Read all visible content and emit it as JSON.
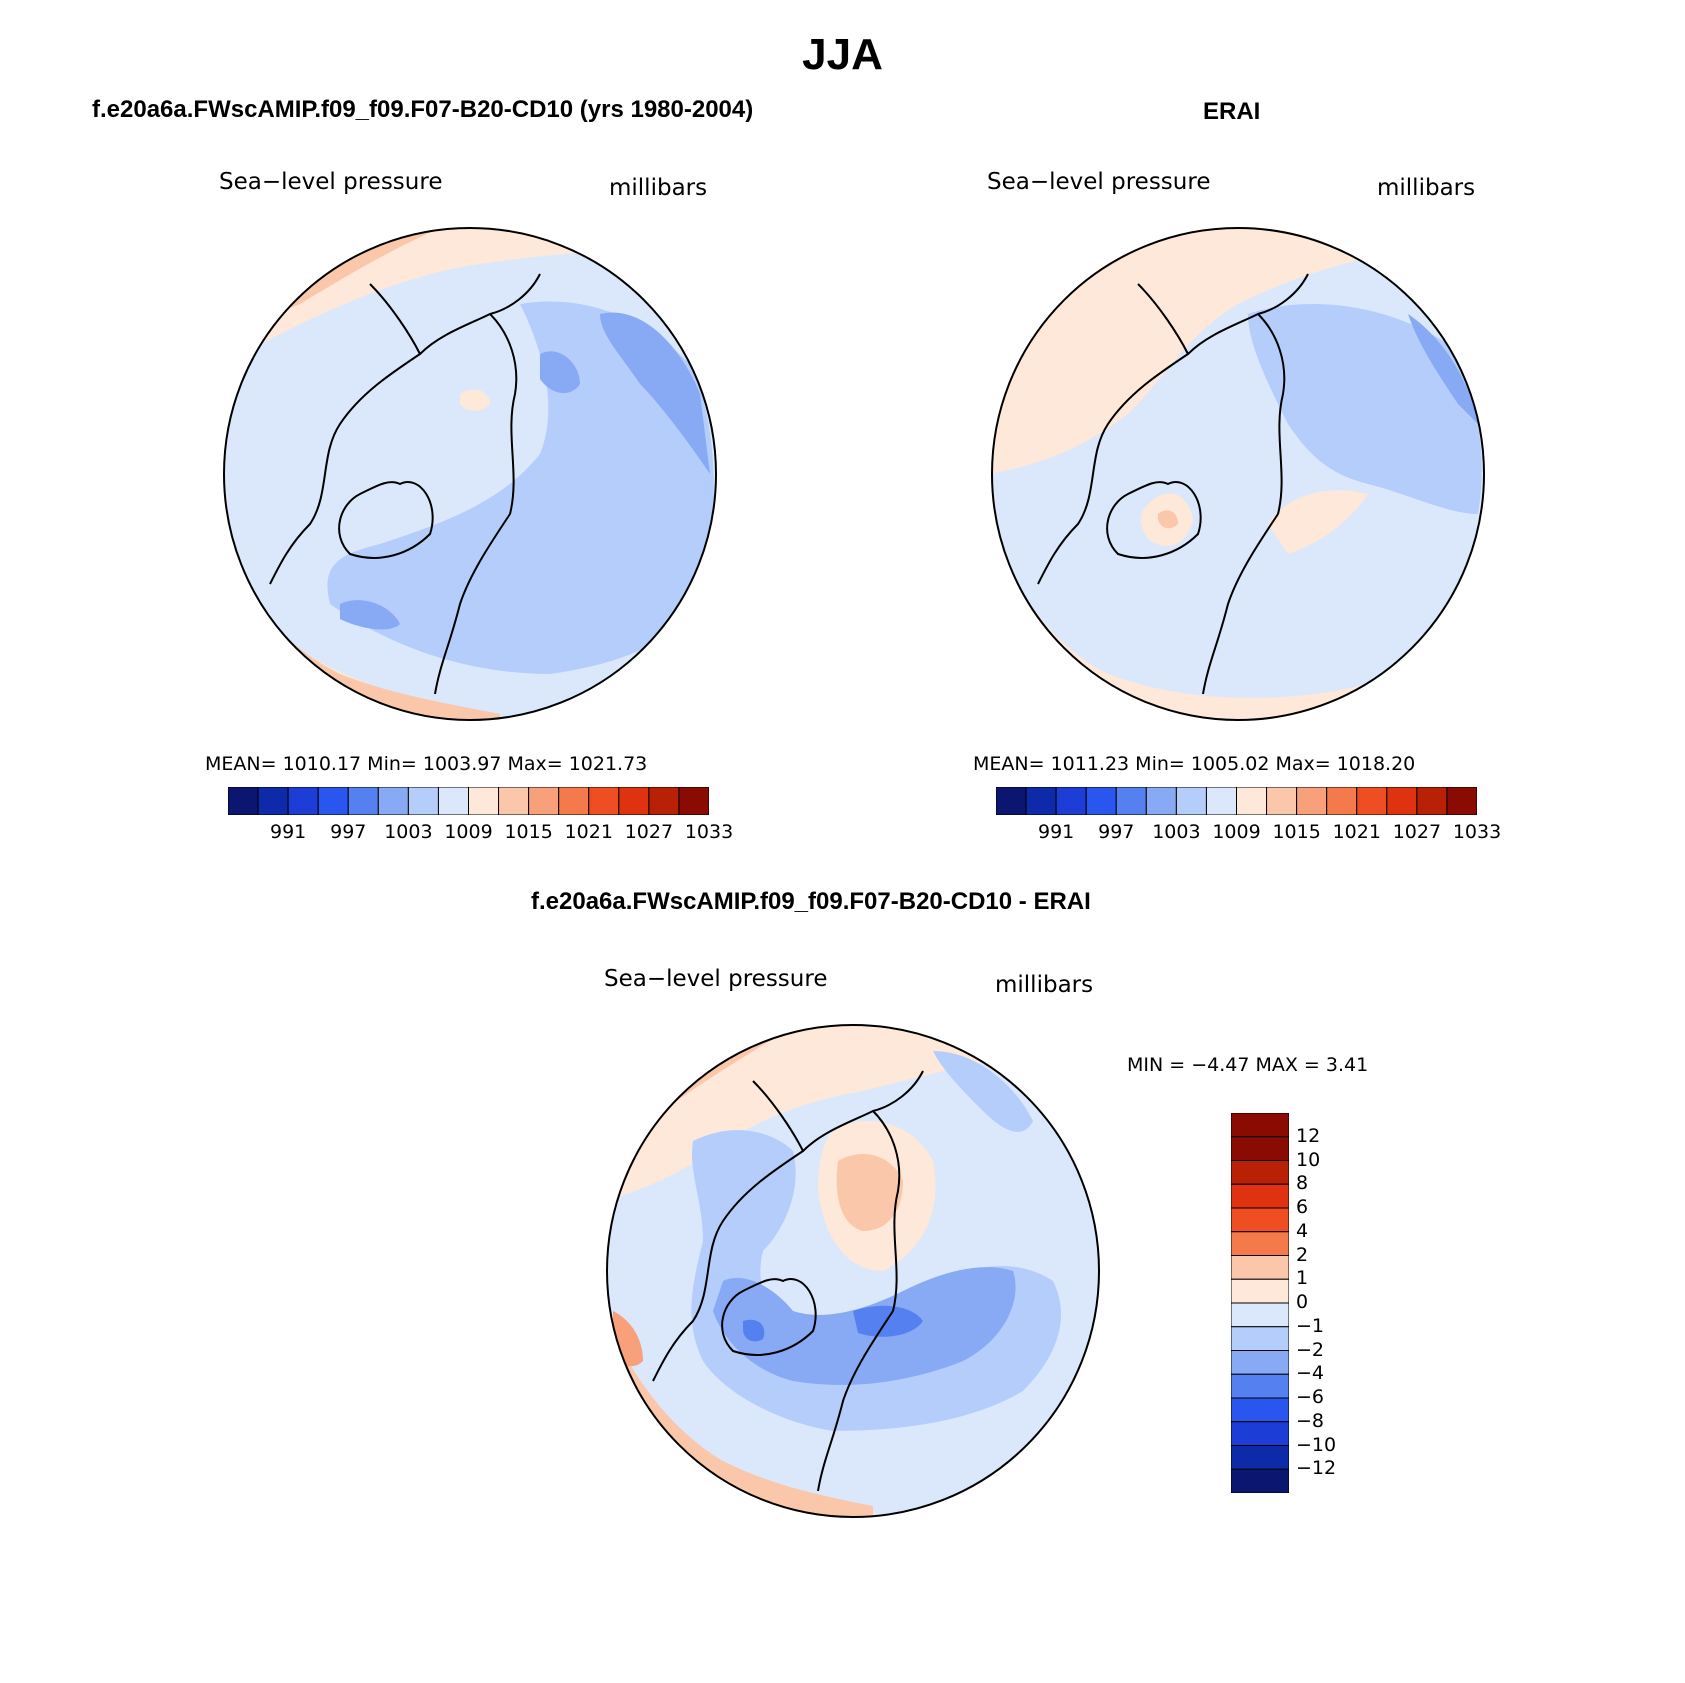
{
  "page": {
    "title": "JJA",
    "diff_title": "f.e20a6a.FWscAMIP.f09_f09.F07-B20-CD10 - ERAI"
  },
  "panels": [
    {
      "title": "f.e20a6a.FWscAMIP.f09_f09.F07-B20-CD10 (yrs 1980-2004)",
      "left_label": "Sea−level pressure",
      "right_label": "millibars",
      "stats": "MEAN= 1010.17   Min= 1003.97   Max= 1021.73"
    },
    {
      "title": "ERAI",
      "left_label": "Sea−level pressure",
      "right_label": "millibars",
      "stats": "MEAN= 1011.23   Min= 1005.02   Max= 1018.20"
    }
  ],
  "diff_panel": {
    "left_label": "Sea−level pressure",
    "right_label": "millibars",
    "stats": "MIN =   −4.47 MAX =    3.41"
  },
  "abs_colorbar": {
    "colors": [
      "#0b1670",
      "#0d2ba8",
      "#1c3ed6",
      "#2a56f0",
      "#5580ef",
      "#88a9f4",
      "#b5cdfa",
      "#dbe8fb",
      "#fde8d9",
      "#fbc7ab",
      "#f8a07a",
      "#f47a4b",
      "#ef4e22",
      "#de3210",
      "#b82106",
      "#8a0b02"
    ],
    "tick_labels": [
      "991",
      "997",
      "1003",
      "1009",
      "1015",
      "1021",
      "1027",
      "1033"
    ]
  },
  "diff_colorbar": {
    "colors": [
      "#8a0b02",
      "#b82106",
      "#de3210",
      "#ef4e22",
      "#f47a4b",
      "#fbc7ab",
      "#fde8d9",
      "#dbe8fb",
      "#b5cdfa",
      "#88a9f4",
      "#5580ef",
      "#2a56f0",
      "#1c3ed6",
      "#0d2ba8",
      "#0b1670"
    ],
    "tick_labels": [
      "12",
      "10",
      "8",
      "6",
      "4",
      "2",
      "1",
      "0",
      "−1",
      "−2",
      "−4",
      "−6",
      "−8",
      "−10",
      "−12"
    ]
  }
}
